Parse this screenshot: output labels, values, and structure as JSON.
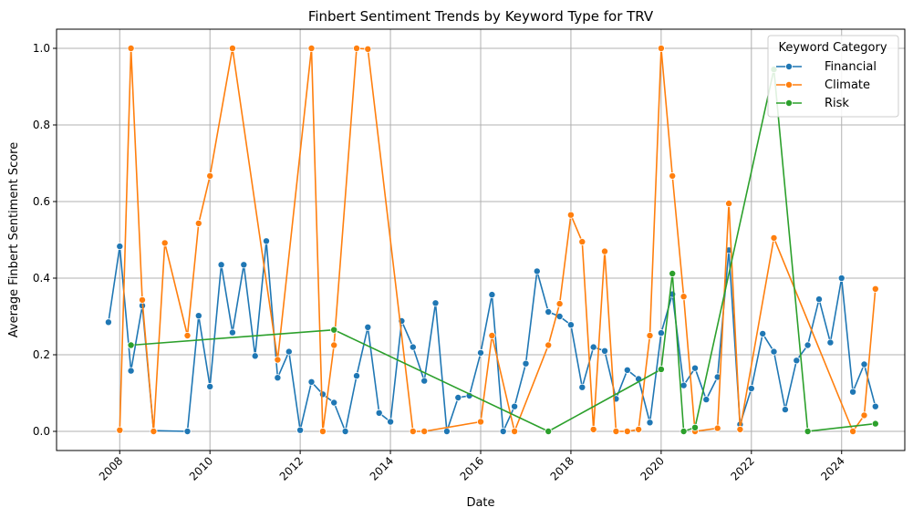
{
  "chart_data": {
    "type": "line",
    "title": "Finbert Sentiment Trends by Keyword Type for TRV",
    "xlabel": "Date",
    "ylabel": "Average Finbert Sentiment Score",
    "xlim": [
      2006.6,
      2025.4
    ],
    "ylim": [
      -0.05,
      1.05
    ],
    "x_ticks": [
      2008,
      2010,
      2012,
      2014,
      2016,
      2018,
      2020,
      2022,
      2024
    ],
    "y_ticks": [
      0.0,
      0.2,
      0.4,
      0.6,
      0.8,
      1.0
    ],
    "y_tick_labels": [
      "0.0",
      "0.2",
      "0.4",
      "0.6",
      "0.8",
      "1.0"
    ],
    "grid": true,
    "legend": {
      "title": "Keyword Category",
      "placement": "top-right"
    },
    "series": [
      {
        "name": "Financial",
        "color": "#1f77b4",
        "x": [
          2007.75,
          2008.0,
          2008.25,
          2008.5,
          2008.75,
          2009.5,
          2009.75,
          2010.0,
          2010.25,
          2010.5,
          2010.75,
          2011.0,
          2011.25,
          2011.5,
          2011.75,
          2012.0,
          2012.25,
          2012.5,
          2012.75,
          2013.0,
          2013.25,
          2013.5,
          2013.75,
          2014.0,
          2014.25,
          2014.5,
          2014.75,
          2015.0,
          2015.25,
          2015.5,
          2015.75,
          2016.0,
          2016.25,
          2016.5,
          2016.75,
          2017.0,
          2017.25,
          2017.5,
          2017.75,
          2018.0,
          2018.25,
          2018.5,
          2018.75,
          2019.0,
          2019.25,
          2019.5,
          2019.75,
          2020.0,
          2020.25,
          2020.5,
          2020.75,
          2021.0,
          2021.25,
          2021.5,
          2021.75,
          2022.0,
          2022.25,
          2022.5,
          2022.75,
          2023.0,
          2023.25,
          2023.5,
          2023.75,
          2024.0,
          2024.25,
          2024.5,
          2024.75
        ],
        "y": [
          0.285,
          0.483,
          0.158,
          0.328,
          0.002,
          0.0,
          0.302,
          0.117,
          0.435,
          0.258,
          0.435,
          0.197,
          0.497,
          0.14,
          0.208,
          0.003,
          0.129,
          0.097,
          0.075,
          0.0,
          0.145,
          0.272,
          0.048,
          0.025,
          0.288,
          0.22,
          0.132,
          0.335,
          0.0,
          0.088,
          0.093,
          0.205,
          0.357,
          0.0,
          0.065,
          0.177,
          0.418,
          0.312,
          0.3,
          0.278,
          0.115,
          0.22,
          0.21,
          0.085,
          0.16,
          0.137,
          0.023,
          0.257,
          0.358,
          0.12,
          0.165,
          0.083,
          0.142,
          0.473,
          0.018,
          0.112,
          0.255,
          0.208,
          0.057,
          0.185,
          0.225,
          0.345,
          0.232,
          0.4,
          0.103,
          0.175,
          0.065
        ]
      },
      {
        "name": "Climate",
        "color": "#ff7f0e",
        "x": [
          2008.0,
          2008.25,
          2008.5,
          2008.75,
          2009.0,
          2009.5,
          2009.75,
          2010.0,
          2010.5,
          2011.5,
          2012.25,
          2012.5,
          2012.75,
          2013.25,
          2013.5,
          2014.5,
          2014.75,
          2016.0,
          2016.25,
          2016.75,
          2017.5,
          2017.75,
          2018.0,
          2018.25,
          2018.5,
          2018.75,
          2019.0,
          2019.25,
          2019.5,
          2019.75,
          2020.0,
          2020.25,
          2020.5,
          2020.75,
          2021.25,
          2021.5,
          2021.75,
          2022.5,
          2024.25,
          2024.5,
          2024.75
        ],
        "y": [
          0.003,
          1.0,
          0.343,
          0.0,
          0.492,
          0.25,
          0.543,
          0.667,
          1.0,
          0.187,
          1.0,
          0.0,
          0.225,
          1.0,
          0.998,
          0.0,
          0.0,
          0.025,
          0.25,
          0.0,
          0.225,
          0.333,
          0.565,
          0.495,
          0.005,
          0.47,
          0.0,
          0.0,
          0.005,
          0.25,
          1.0,
          0.667,
          0.352,
          0.0,
          0.008,
          0.595,
          0.005,
          0.505,
          0.0,
          0.042,
          0.372
        ]
      },
      {
        "name": "Risk",
        "color": "#2ca02c",
        "x": [
          2008.25,
          2012.75,
          2017.5,
          2020.0,
          2020.25,
          2020.5,
          2020.75,
          2022.5,
          2023.25,
          2024.75
        ],
        "y": [
          0.225,
          0.265,
          0.0,
          0.162,
          0.412,
          0.0,
          0.01,
          0.945,
          0.0,
          0.02
        ]
      }
    ]
  }
}
